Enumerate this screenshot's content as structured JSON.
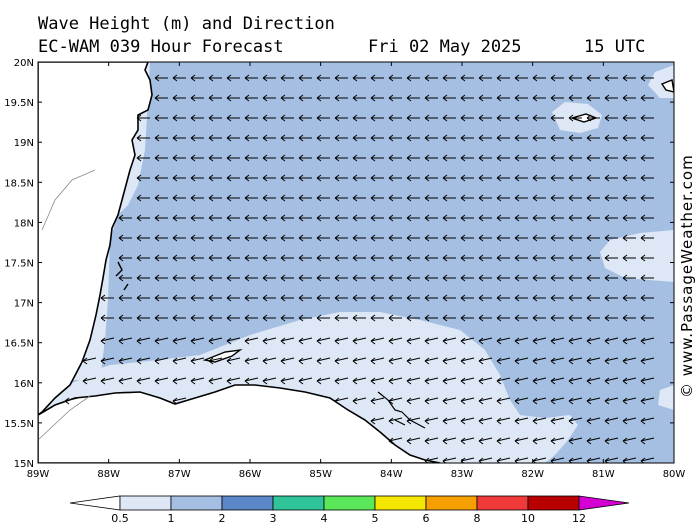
{
  "header": {
    "title": "Wave Height (m) and Direction",
    "model": "EC-WAM 039 Hour Forecast",
    "date": "Fri 02 May 2025",
    "time": "15 UTC"
  },
  "credit": "© www.PassageWeather.com",
  "map": {
    "lat_labels": [
      "20N",
      "19.5N",
      "19N",
      "18.5N",
      "18N",
      "17.5N",
      "17N",
      "16.5N",
      "16N",
      "15.5N",
      "15N"
    ],
    "lon_labels": [
      "89W",
      "88W",
      "87W",
      "86W",
      "85W",
      "84W",
      "83W",
      "82W",
      "81W",
      "80W"
    ],
    "prevailing_wave_direction": "from east",
    "colors": {
      "sea_0_5_1m": "#dde7f5",
      "sea_1_2m": "#a5bfe2",
      "land": "#ffffff",
      "coastline": "#000000"
    }
  },
  "legend": {
    "tick_labels": [
      "0.5",
      "1",
      "2",
      "3",
      "4",
      "5",
      "6",
      "8",
      "10",
      "12"
    ],
    "colors": [
      "#dde7f5",
      "#a5bfe2",
      "#5b86c8",
      "#2fc49a",
      "#5ae85a",
      "#f5e600",
      "#f5a000",
      "#f03a3a",
      "#b80000",
      "#d400d4"
    ]
  }
}
